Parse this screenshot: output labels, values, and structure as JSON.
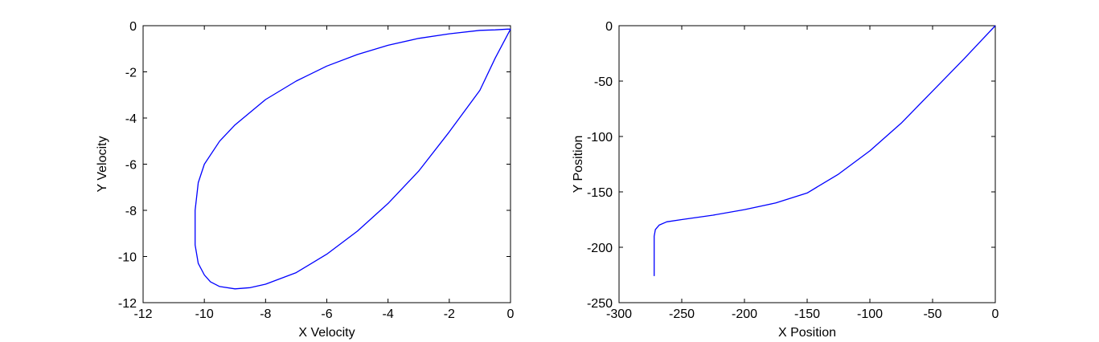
{
  "chart_data": [
    {
      "type": "line",
      "xlabel": "X Velocity",
      "ylabel": "Y Velocity",
      "xlim": [
        -12,
        0
      ],
      "ylim": [
        -12,
        0
      ],
      "xticks": [
        -12,
        -10,
        -8,
        -6,
        -4,
        -2,
        0
      ],
      "yticks": [
        -12,
        -10,
        -8,
        -6,
        -4,
        -2,
        0
      ],
      "grid": false,
      "line_color": "#0000ff",
      "series": [
        {
          "x": [
            0,
            0,
            -0.1,
            -0.5,
            -1.0,
            -2.0,
            -3.0,
            -4.0,
            -5.0,
            -6.0,
            -7.0,
            -8.0,
            -9.0,
            -9.5,
            -10.0,
            -10.2,
            -10.3,
            -10.3,
            -10.2,
            -10.0,
            -9.8,
            -9.5,
            -9.0,
            -8.5,
            -8.0,
            -7.0,
            -6.0,
            -5.0,
            -4.0,
            -3.0,
            -2.0,
            -1.0,
            -0.5,
            0
          ],
          "y": [
            -0.15,
            -0.15,
            -0.15,
            -0.18,
            -0.2,
            -0.35,
            -0.55,
            -0.85,
            -1.25,
            -1.75,
            -2.4,
            -3.2,
            -4.3,
            -5.0,
            -6.0,
            -6.8,
            -8.0,
            -9.5,
            -10.3,
            -10.8,
            -11.1,
            -11.3,
            -11.4,
            -11.35,
            -11.2,
            -10.7,
            -9.9,
            -8.9,
            -7.7,
            -6.3,
            -4.6,
            -2.8,
            -1.4,
            -0.15
          ]
        }
      ]
    },
    {
      "type": "line",
      "xlabel": "X Position",
      "ylabel": "Y Position",
      "xlim": [
        -300,
        0
      ],
      "ylim": [
        -250,
        0
      ],
      "xticks": [
        -300,
        -250,
        -200,
        -150,
        -100,
        -50,
        0
      ],
      "yticks": [
        -250,
        -200,
        -150,
        -100,
        -50,
        0
      ],
      "grid": false,
      "line_color": "#0000ff",
      "series": [
        {
          "x": [
            0,
            -10,
            -25,
            -50,
            -75,
            -100,
            -125,
            -150,
            -175,
            -200,
            -225,
            -250,
            -262,
            -268,
            -271,
            -272,
            -272,
            -272
          ],
          "y": [
            0,
            -12,
            -30,
            -59,
            -88,
            -113,
            -134,
            -151,
            -160,
            -166,
            -171,
            -175,
            -177,
            -180,
            -184,
            -190,
            -205,
            -226
          ]
        }
      ]
    }
  ]
}
